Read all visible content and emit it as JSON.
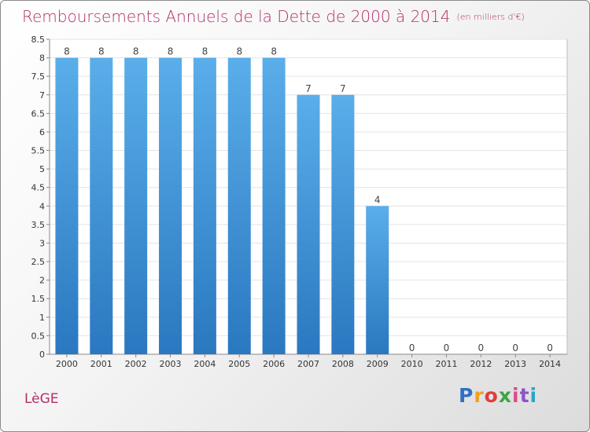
{
  "chart_data": {
    "type": "bar",
    "title": "Remboursements Annuels de la Dette de 2000 à 2014",
    "unit_note": "(en milliers d'€)",
    "categories": [
      "2000",
      "2001",
      "2002",
      "2003",
      "2004",
      "2005",
      "2006",
      "2007",
      "2008",
      "2009",
      "2010",
      "2011",
      "2012",
      "2013",
      "2014"
    ],
    "values": [
      8,
      8,
      8,
      8,
      8,
      8,
      8,
      7,
      7,
      4,
      0,
      0,
      0,
      0,
      0
    ],
    "ylim": [
      0,
      8.5
    ],
    "yticks": [
      "0",
      "0.5",
      "1",
      "1.5",
      "2",
      "2.5",
      "3",
      "3.5",
      "4",
      "4.5",
      "5",
      "5.5",
      "6",
      "6.5",
      "7",
      "7.5",
      "8",
      "8.5"
    ],
    "grid": true,
    "bar_color": "#3f95dc"
  },
  "commune": "LèGE",
  "logo": {
    "p": "P",
    "r": "r",
    "o": "o",
    "x": "x",
    "i1": "i",
    "t": "t",
    "i2": "i"
  }
}
